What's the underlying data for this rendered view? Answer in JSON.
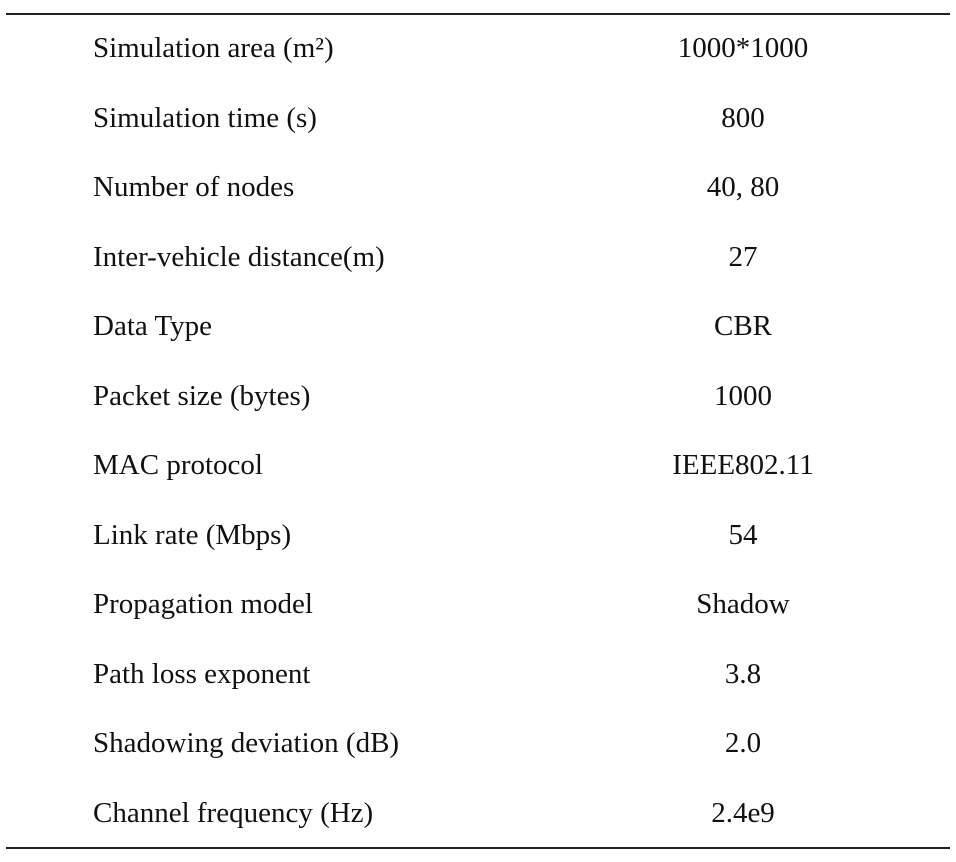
{
  "table": {
    "rows": [
      [
        "Simulation area (m²)",
        "1000*1000"
      ],
      [
        "Simulation time (s)",
        "800"
      ],
      [
        "Number of nodes",
        "40, 80"
      ],
      [
        "Inter-vehicle distance(m)",
        "27"
      ],
      [
        "Data Type",
        "CBR"
      ],
      [
        "Packet size (bytes)",
        "1000"
      ],
      [
        "MAC protocol",
        "IEEE802.11"
      ],
      [
        "Link rate (Mbps)",
        "54"
      ],
      [
        "Propagation model",
        "Shadow"
      ],
      [
        "Path loss exponent",
        "3.8"
      ],
      [
        "Shadowing deviation (dB)",
        "2.0"
      ],
      [
        "Channel frequency (Hz)",
        "2.4e9"
      ]
    ]
  }
}
